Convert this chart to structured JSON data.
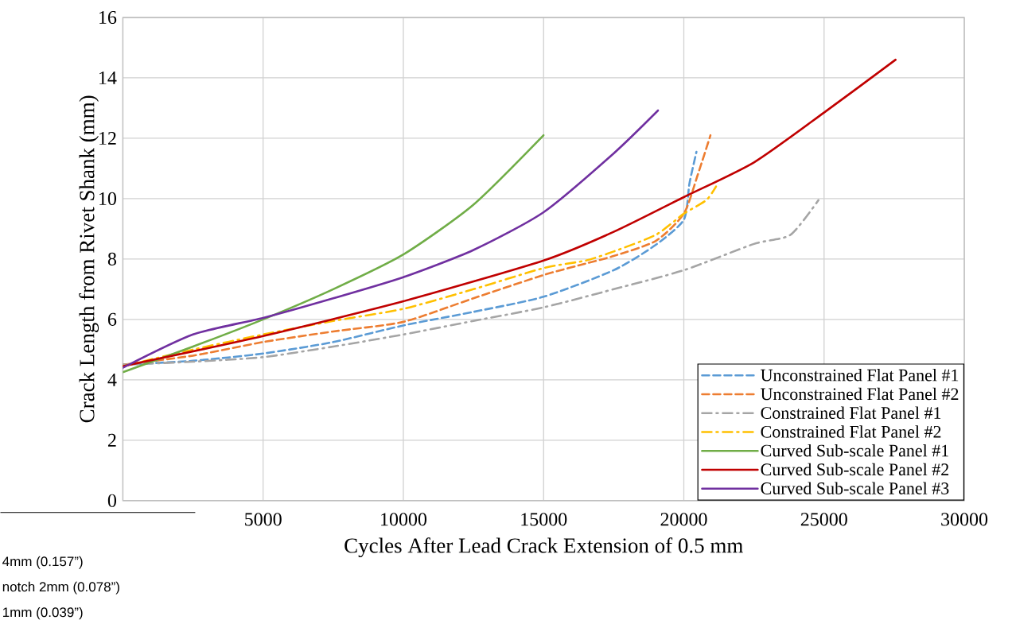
{
  "chart_data": {
    "type": "line",
    "xlabel": "Cycles After Lead Crack Extension of 0.5 mm",
    "ylabel": "Crack Length from Rivet Shank (mm)",
    "xlim": [
      0,
      30000
    ],
    "ylim": [
      0,
      16
    ],
    "xticks": [
      {
        "value": 0,
        "label": null
      },
      5000,
      10000,
      15000,
      20000,
      25000,
      30000
    ],
    "yticks": [
      0,
      2,
      4,
      6,
      8,
      10,
      12,
      14,
      16
    ],
    "grid": true,
    "legend": "bottom right",
    "marker": "none",
    "annotations": [
      "4mm (0.157”)",
      "notch 2mm (0.078”)",
      "1mm (0.039”)"
    ],
    "series": [
      {
        "name": "Unconstrained Flat Panel #1",
        "color": "#5b9bd5",
        "line_style": "dashed",
        "x": [
          0,
          2500,
          5000,
          7500,
          10000,
          12500,
          15000,
          17500,
          19000,
          20000,
          20200,
          20450
        ],
        "values": [
          4.5,
          4.63,
          4.87,
          5.25,
          5.8,
          6.25,
          6.75,
          7.63,
          8.47,
          9.3,
          10.5,
          11.55
        ]
      },
      {
        "name": "Unconstrained Flat Panel #2",
        "color": "#ed7d31",
        "line_style": "dashed",
        "x": [
          0,
          2500,
          5000,
          7500,
          10000,
          12500,
          15000,
          16500,
          17500,
          19000,
          20000,
          20500,
          20950
        ],
        "values": [
          4.5,
          4.8,
          5.25,
          5.6,
          5.92,
          6.7,
          7.47,
          7.85,
          8.1,
          8.6,
          9.5,
          10.8,
          12.1
        ]
      },
      {
        "name": "Constrained Flat Panel #1",
        "color": "#a5a5a5",
        "line_style": "dashdot",
        "x": [
          0,
          2500,
          5000,
          7500,
          10000,
          12500,
          15000,
          17500,
          20000,
          22500,
          23800,
          24800
        ],
        "values": [
          4.5,
          4.6,
          4.75,
          5.1,
          5.5,
          5.95,
          6.4,
          7.0,
          7.63,
          8.5,
          8.8,
          9.95
        ]
      },
      {
        "name": "Constrained Flat Panel #2",
        "color": "#ffc000",
        "line_style": "dashdot",
        "x": [
          0,
          2500,
          5000,
          7500,
          10000,
          12500,
          15000,
          16500,
          17500,
          19000,
          20000,
          20800,
          21150
        ],
        "values": [
          4.45,
          5.0,
          5.5,
          5.95,
          6.35,
          7.0,
          7.7,
          7.95,
          8.25,
          8.8,
          9.5,
          9.95,
          10.4
        ]
      },
      {
        "name": "Curved Sub-scale Panel #1",
        "color": "#70ad47",
        "line_style": "solid",
        "x": [
          0,
          2500,
          5000,
          7500,
          10000,
          12500,
          15000
        ],
        "values": [
          4.25,
          5.1,
          6.0,
          7.0,
          8.15,
          9.8,
          12.1
        ]
      },
      {
        "name": "Curved Sub-scale Panel #2",
        "color": "#c00000",
        "line_style": "solid",
        "x": [
          0,
          5000,
          10000,
          15000,
          17500,
          20000,
          22500,
          25000,
          27550
        ],
        "values": [
          4.45,
          5.45,
          6.6,
          7.95,
          8.9,
          10.05,
          11.2,
          12.85,
          14.6
        ]
      },
      {
        "name": "Curved Sub-scale Panel #3",
        "color": "#7030a0",
        "line_style": "solid",
        "x": [
          0,
          2500,
          5000,
          7500,
          10000,
          12500,
          15000,
          17500,
          19080
        ],
        "values": [
          4.4,
          5.5,
          6.05,
          6.7,
          7.4,
          8.3,
          9.55,
          11.5,
          12.92
        ]
      }
    ]
  }
}
